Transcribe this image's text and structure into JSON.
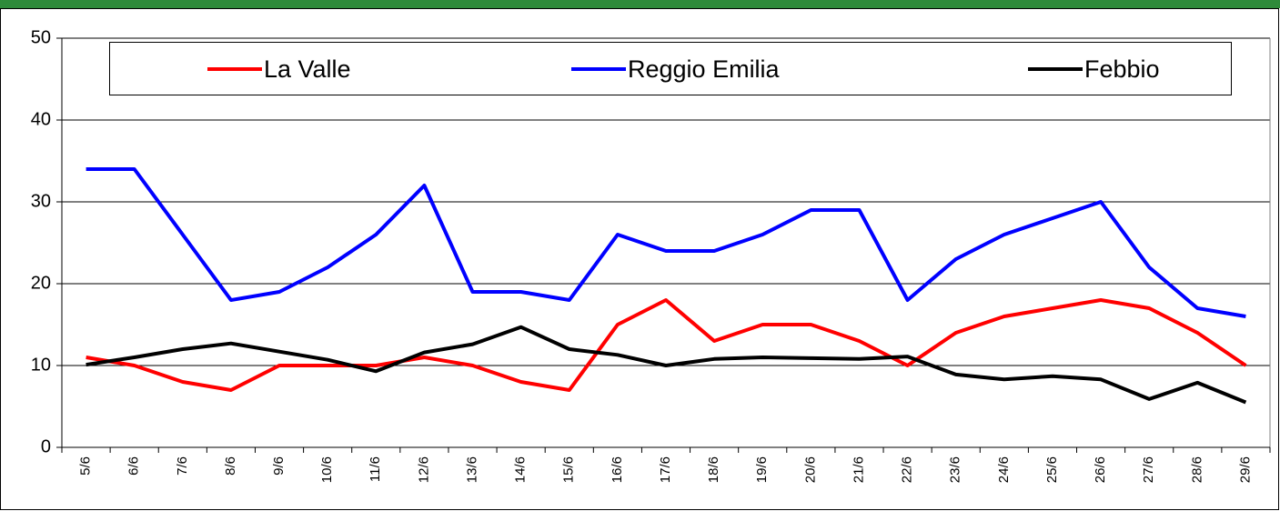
{
  "chart_data": {
    "type": "line",
    "categories": [
      "5/6",
      "6/6",
      "7/6",
      "8/6",
      "9/6",
      "10/6",
      "11/6",
      "12/6",
      "13/6",
      "14/6",
      "15/6",
      "16/6",
      "17/6",
      "18/6",
      "19/6",
      "20/6",
      "21/6",
      "22/6",
      "23/6",
      "24/6",
      "25/6",
      "26/6",
      "27/6",
      "28/6",
      "29/6"
    ],
    "series": [
      {
        "name": "La Valle",
        "color": "#ff0000",
        "values": [
          11,
          10,
          8,
          7,
          10,
          10,
          10,
          11,
          10,
          8,
          7,
          15,
          18,
          13,
          15,
          15,
          13,
          10,
          14,
          16,
          17,
          18,
          17,
          14,
          10
        ]
      },
      {
        "name": "Reggio Emilia",
        "color": "#0000ff",
        "values": [
          34,
          34,
          26,
          18,
          19,
          22,
          26,
          32,
          19,
          19,
          18,
          26,
          24,
          24,
          26,
          29,
          29,
          18,
          23,
          26,
          28,
          30,
          22,
          17,
          16
        ]
      },
      {
        "name": "Febbio",
        "color": "#000000",
        "values": [
          10.1,
          11,
          12,
          12.7,
          11.7,
          10.7,
          9.3,
          11.6,
          12.6,
          14.7,
          12,
          11.3,
          10,
          10.8,
          11,
          10.9,
          10.8,
          11.1,
          8.9,
          8.3,
          8.7,
          8.3,
          5.9,
          7.9,
          5.5
        ]
      }
    ],
    "ylim": [
      0,
      50
    ],
    "yticks": [
      0,
      10,
      20,
      30,
      40,
      50
    ],
    "grid": true
  }
}
